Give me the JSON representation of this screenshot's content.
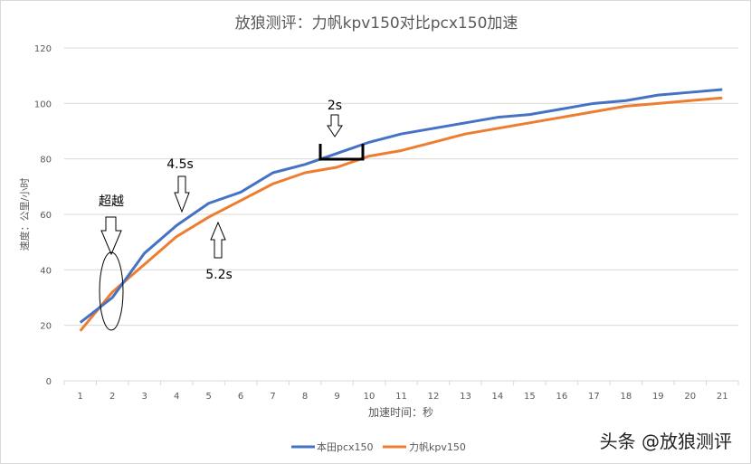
{
  "chart_data": {
    "type": "line",
    "title": "放狼测评：力帆kpv150对比pcx150加速",
    "xlabel": "加速时间：秒",
    "ylabel": "速度：公里/小时",
    "x": [
      1,
      2,
      3,
      4,
      5,
      6,
      7,
      8,
      9,
      10,
      11,
      12,
      13,
      14,
      15,
      16,
      17,
      18,
      19,
      20,
      21
    ],
    "ylim": [
      0,
      120
    ],
    "yticks": [
      0,
      20,
      40,
      60,
      80,
      100,
      120
    ],
    "grid": true,
    "legend": "bottom",
    "series": [
      {
        "name": "本田pcx150",
        "color": "#4472c4",
        "values": [
          21,
          30,
          46,
          56,
          64,
          68,
          75,
          78,
          82,
          86,
          89,
          91,
          93,
          95,
          96,
          98,
          100,
          101,
          103,
          104,
          105
        ]
      },
      {
        "name": "力帆kpv150",
        "color": "#ed7d31",
        "values": [
          18,
          32,
          42,
          52,
          59,
          65,
          71,
          75,
          77,
          81,
          83,
          86,
          89,
          91,
          93,
          95,
          97,
          99,
          100,
          101,
          102
        ]
      }
    ],
    "annotations": {
      "overtake": "超越",
      "pcx_60": "4.5s",
      "kpv_60": "5.2s",
      "gap_80": "2s"
    }
  },
  "watermark": "头条 @放狼测评"
}
